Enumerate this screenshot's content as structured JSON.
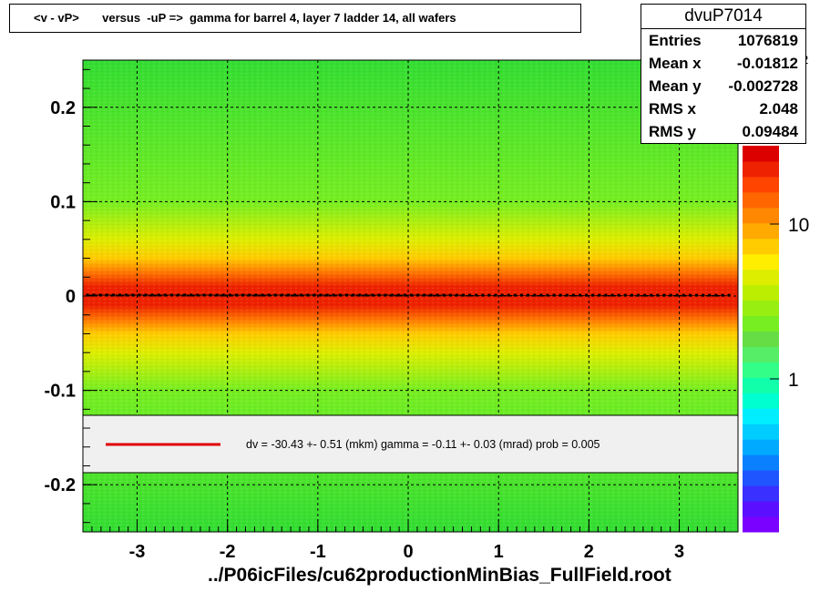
{
  "title": "<v - vP>       versus  -uP =>  gamma for barrel 4, layer 7 ladder 14, all wafers",
  "stats": {
    "name": "dvuP7014",
    "rows": [
      {
        "label": "Entries",
        "value": "1076819"
      },
      {
        "label": "Mean x",
        "value": "-0.01812"
      },
      {
        "label": "Mean y",
        "value": "-0.002728"
      },
      {
        "label": "RMS x",
        "value": "2.048"
      },
      {
        "label": "RMS y",
        "value": "0.09484"
      }
    ]
  },
  "legend": {
    "text": "dv =  -30.43 +-  0.51 (mkm) gamma =   -0.11 +-  0.03 (mrad) prob = 0.005",
    "line_color": "#e00000"
  },
  "footer": "../P06icFiles/cu62productionMinBias_FullField.root",
  "chart_data": {
    "type": "heatmap",
    "xlim": [
      -3.6,
      3.65
    ],
    "ylim": [
      -0.25,
      0.25
    ],
    "x_ticks": [
      -3,
      -2,
      -1,
      0,
      1,
      2,
      3
    ],
    "y_ticks": [
      -0.2,
      -0.1,
      0,
      0.1,
      0.2
    ],
    "x_tick_labels": [
      "-3",
      "-2",
      "-1",
      "0",
      "1",
      "2",
      "3"
    ],
    "y_tick_labels": [
      "-0.2",
      "-0.1",
      "0",
      "0.1",
      "0.2"
    ],
    "grid": true,
    "z_scale": "log",
    "z_tick_labels": [
      "1",
      "10",
      "10",
      "2"
    ],
    "z_tick_values": [
      1,
      10,
      100
    ],
    "profile": {
      "x_range": [
        -3.55,
        3.55
      ],
      "y_start": 0.001,
      "y_end": 0.0008,
      "color": "#000000"
    },
    "fit": {
      "color": "#e00000"
    }
  }
}
